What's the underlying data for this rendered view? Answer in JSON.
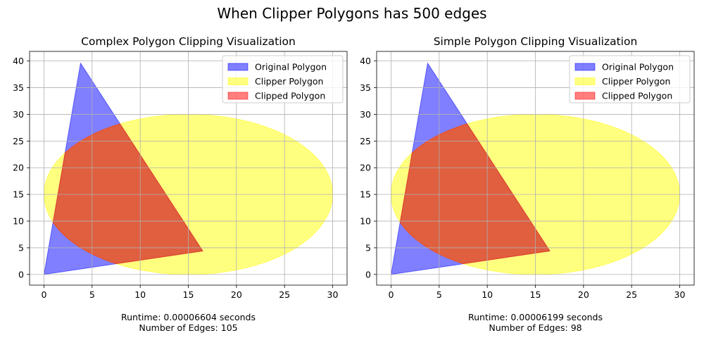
{
  "figure": {
    "title": "When Clipper Polygons has 500 edges"
  },
  "chart_data": [
    {
      "type": "area",
      "title": "Complex Polygon Clipping Visualization",
      "xlabel": "",
      "ylabel": "",
      "xlim": [
        -1.5,
        31.5
      ],
      "ylim": [
        -2,
        41.8
      ],
      "xticks": [
        0,
        5,
        10,
        15,
        20,
        25,
        30
      ],
      "yticks": [
        0,
        5,
        10,
        15,
        20,
        25,
        30,
        35,
        40
      ],
      "grid": true,
      "legend_position": "top-right",
      "legend": [
        "Original Polygon",
        "Clipper Polygon",
        "Clipped Polygon"
      ],
      "colors": {
        "original": "#0000ff",
        "clipper": "#ffff00",
        "clipped": "#ff0000"
      },
      "original_polygon": [
        [
          0,
          0
        ],
        [
          3.8,
          39.6
        ],
        [
          16.5,
          4.4
        ]
      ],
      "clipper_polygon": {
        "shape": "ellipse",
        "center": [
          15,
          15
        ],
        "rx": 15,
        "ry": 15,
        "edges": 500
      },
      "annotation": {
        "runtime": "Runtime: 0.00006604 seconds",
        "edges": "Number of Edges: 105"
      }
    },
    {
      "type": "area",
      "title": "Simple Polygon Clipping Visualization",
      "xlabel": "",
      "ylabel": "",
      "xlim": [
        -1.5,
        31.5
      ],
      "ylim": [
        -2,
        41.8
      ],
      "xticks": [
        0,
        5,
        10,
        15,
        20,
        25,
        30
      ],
      "yticks": [
        0,
        5,
        10,
        15,
        20,
        25,
        30,
        35,
        40
      ],
      "grid": true,
      "legend_position": "top-right",
      "legend": [
        "Original Polygon",
        "Clipper Polygon",
        "Clipped Polygon"
      ],
      "colors": {
        "original": "#0000ff",
        "clipper": "#ffff00",
        "clipped": "#ff0000"
      },
      "original_polygon": [
        [
          0,
          0
        ],
        [
          3.8,
          39.6
        ],
        [
          16.5,
          4.4
        ]
      ],
      "clipper_polygon": {
        "shape": "ellipse",
        "center": [
          15,
          15
        ],
        "rx": 15,
        "ry": 15,
        "edges": 500
      },
      "annotation": {
        "runtime": "Runtime: 0.00006199 seconds",
        "edges": "Number of Edges: 98"
      }
    }
  ]
}
